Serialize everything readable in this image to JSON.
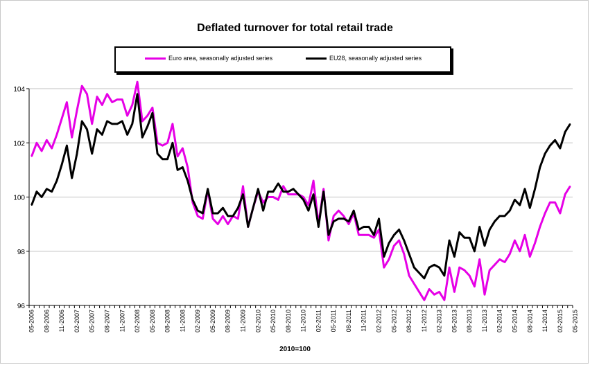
{
  "chart_data": {
    "type": "line",
    "title": "Deflated turnover for total retail trade",
    "xlabel": "2010=100",
    "ylabel": "",
    "ylim": [
      96,
      104
    ],
    "y_ticks": [
      96,
      98,
      100,
      102,
      104
    ],
    "grid": true,
    "legend_position": "top",
    "x_tick_labels": [
      "05-2006",
      "08-2006",
      "11-2006",
      "02-2007",
      "05-2007",
      "08-2007",
      "11-2007",
      "02-2008",
      "05-2008",
      "08-2008",
      "11-2008",
      "02-2009",
      "05-2009",
      "08-2009",
      "11-2009",
      "02-2010",
      "05-2010",
      "08-2010",
      "11-2010",
      "02-2011",
      "05-2011",
      "08-2011",
      "11-2011",
      "02-2012",
      "05-2012",
      "08-2012",
      "11-2012",
      "02-2013",
      "05-2013",
      "08-2013",
      "11-2013",
      "02-2014",
      "05-2014",
      "08-2014",
      "11-2014",
      "02-2015",
      "05-2015"
    ],
    "series": [
      {
        "name": "Euro area, seasonally adjusted series",
        "color": "#e600e6",
        "values": [
          101.5,
          102.0,
          101.7,
          102.1,
          101.8,
          102.3,
          102.9,
          103.5,
          102.2,
          103.2,
          104.1,
          103.8,
          102.7,
          103.7,
          103.4,
          103.8,
          103.5,
          103.6,
          103.6,
          103.0,
          103.4,
          104.25,
          102.8,
          103.0,
          103.3,
          102.0,
          101.9,
          102.0,
          102.7,
          101.5,
          101.8,
          101.1,
          99.8,
          99.3,
          99.2,
          100.25,
          99.2,
          99.0,
          99.3,
          99.0,
          99.3,
          99.2,
          100.4,
          98.9,
          99.6,
          100.2,
          99.8,
          100.0,
          100.0,
          99.9,
          100.4,
          100.1,
          100.1,
          100.1,
          100.0,
          99.7,
          100.6,
          99.0,
          100.3,
          98.4,
          99.3,
          99.5,
          99.3,
          99.0,
          99.4,
          98.6,
          98.6,
          98.6,
          98.5,
          98.8,
          97.4,
          97.7,
          98.2,
          98.4,
          97.9,
          97.1,
          96.8,
          96.5,
          96.2,
          96.6,
          96.4,
          96.5,
          96.2,
          97.4,
          96.5,
          97.4,
          97.3,
          97.1,
          96.7,
          97.7,
          96.4,
          97.3,
          97.5,
          97.7,
          97.6,
          97.9,
          98.4,
          98.0,
          98.6,
          97.8,
          98.3,
          98.9,
          99.4,
          99.8,
          99.8,
          99.4,
          100.1,
          100.4
        ]
      },
      {
        "name": "EU28, seasonally adjusted series",
        "color": "#000000",
        "values": [
          99.7,
          100.2,
          100.0,
          100.3,
          100.2,
          100.6,
          101.2,
          101.9,
          100.7,
          101.6,
          102.8,
          102.5,
          101.6,
          102.5,
          102.3,
          102.8,
          102.7,
          102.7,
          102.8,
          102.3,
          102.7,
          103.8,
          102.2,
          102.6,
          103.1,
          101.6,
          101.4,
          101.4,
          102.0,
          101.0,
          101.1,
          100.6,
          99.9,
          99.5,
          99.4,
          100.3,
          99.4,
          99.4,
          99.6,
          99.3,
          99.3,
          99.6,
          100.1,
          98.9,
          99.6,
          100.3,
          99.5,
          100.2,
          100.2,
          100.5,
          100.2,
          100.2,
          100.3,
          100.1,
          99.9,
          99.5,
          100.1,
          98.9,
          100.2,
          98.6,
          99.1,
          99.2,
          99.2,
          99.1,
          99.5,
          98.8,
          98.9,
          98.9,
          98.6,
          99.2,
          97.8,
          98.3,
          98.6,
          98.8,
          98.4,
          97.9,
          97.4,
          97.2,
          97.0,
          97.4,
          97.5,
          97.4,
          97.1,
          98.4,
          97.8,
          98.7,
          98.5,
          98.5,
          98.0,
          98.9,
          98.2,
          98.8,
          99.1,
          99.3,
          99.3,
          99.5,
          99.9,
          99.7,
          100.3,
          99.6,
          100.3,
          101.1,
          101.6,
          101.9,
          102.1,
          101.8,
          102.4,
          102.7
        ]
      }
    ]
  }
}
